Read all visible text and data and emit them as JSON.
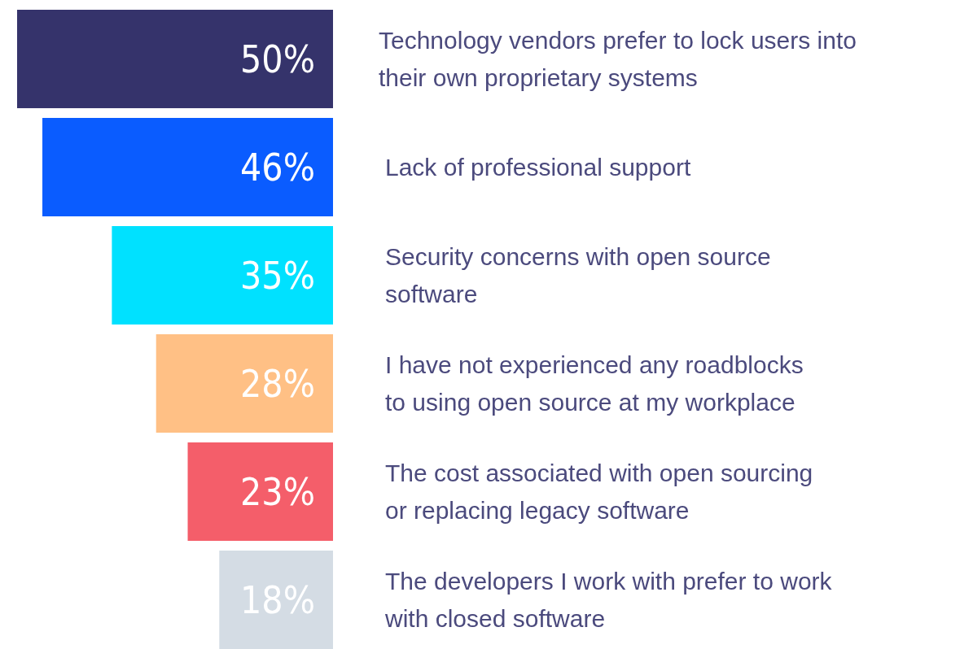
{
  "chart_data": {
    "type": "bar",
    "orientation": "horizontal",
    "categories": [
      "Technology vendors prefer to lock users into\ntheir own proprietary systems",
      "Lack of professional support",
      "Security concerns with open source\nsoftware",
      "I have not experienced any roadblocks\nto using open source at my workplace",
      "The cost associated with open sourcing\nor replacing legacy software",
      "The developers I work with prefer to work\nwith closed software"
    ],
    "values": [
      50,
      46,
      35,
      28,
      23,
      18
    ],
    "value_labels": [
      "50%",
      "46%",
      "35%",
      "28%",
      "23%",
      "18%"
    ],
    "colors": [
      "#35336b",
      "#0a5cff",
      "#00e1ff",
      "#ffc085",
      "#f45e6a",
      "#d4dce4"
    ],
    "xlim": [
      50,
      0
    ]
  }
}
